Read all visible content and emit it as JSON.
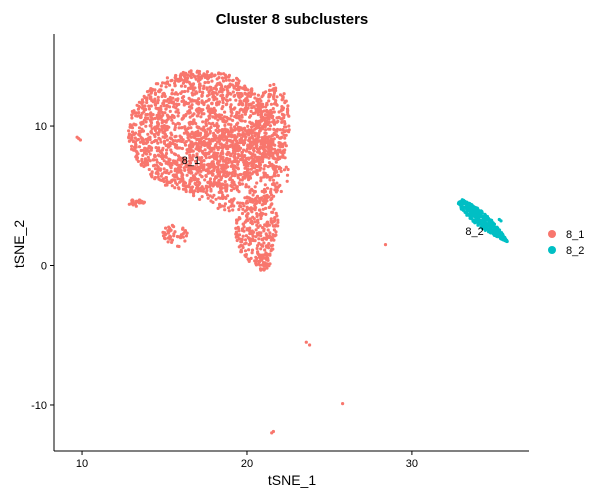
{
  "chart_data": {
    "type": "scatter",
    "title": "Cluster 8  subclusters",
    "xlabel": "tSNE_1",
    "ylabel": "tSNE_2",
    "xlim": [
      8.3,
      37.1
    ],
    "ylim": [
      -13.3,
      16.6
    ],
    "x_ticks": [
      10,
      20,
      30
    ],
    "y_ticks": [
      -10,
      0,
      10
    ],
    "grid": false,
    "legend_position": "right",
    "series": [
      {
        "name": "8_1",
        "color": "#F8766D",
        "label_at": [
          16.6,
          7.5
        ],
        "regions": [
          {
            "shape": "ellipse",
            "center": [
              17.2,
              9.6
            ],
            "radius": [
              4.4,
              4.4
            ],
            "count": 1700
          },
          {
            "shape": "ellipse",
            "center": [
              19.3,
              6.9
            ],
            "radius": [
              3.3,
              3.0
            ],
            "count": 500
          },
          {
            "shape": "ellipse",
            "center": [
              21.6,
              10.2
            ],
            "radius": [
              1.0,
              2.8
            ],
            "count": 220
          },
          {
            "shape": "ellipse",
            "center": [
              20.6,
              2.7
            ],
            "radius": [
              1.3,
              2.6
            ],
            "count": 260
          },
          {
            "shape": "ellipse",
            "center": [
              21.0,
              0.2
            ],
            "radius": [
              0.45,
              0.6
            ],
            "count": 35
          },
          {
            "shape": "ellipse",
            "center": [
              15.6,
              2.1
            ],
            "radius": [
              0.8,
              0.8
            ],
            "count": 45
          },
          {
            "shape": "ellipse",
            "center": [
              13.3,
              4.5
            ],
            "radius": [
              0.5,
              0.25
            ],
            "count": 25
          }
        ],
        "outliers": [
          [
            9.7,
            9.2
          ],
          [
            9.9,
            9.0
          ],
          [
            9.8,
            9.1
          ],
          [
            28.4,
            1.5
          ],
          [
            23.6,
            -5.5
          ],
          [
            23.8,
            -5.7
          ],
          [
            25.8,
            -9.9
          ],
          [
            21.6,
            -11.9
          ],
          [
            21.5,
            -12.0
          ]
        ]
      },
      {
        "name": "8_2",
        "color": "#00BFC4",
        "label_at": [
          33.8,
          2.4
        ],
        "regions": [
          {
            "shape": "band",
            "start": [
              32.9,
              4.6
            ],
            "end": [
              35.8,
              1.7
            ],
            "width": 0.45,
            "count": 420
          }
        ],
        "outliers": [
          [
            35.3,
            3.3
          ],
          [
            35.4,
            3.2
          ]
        ]
      }
    ]
  }
}
